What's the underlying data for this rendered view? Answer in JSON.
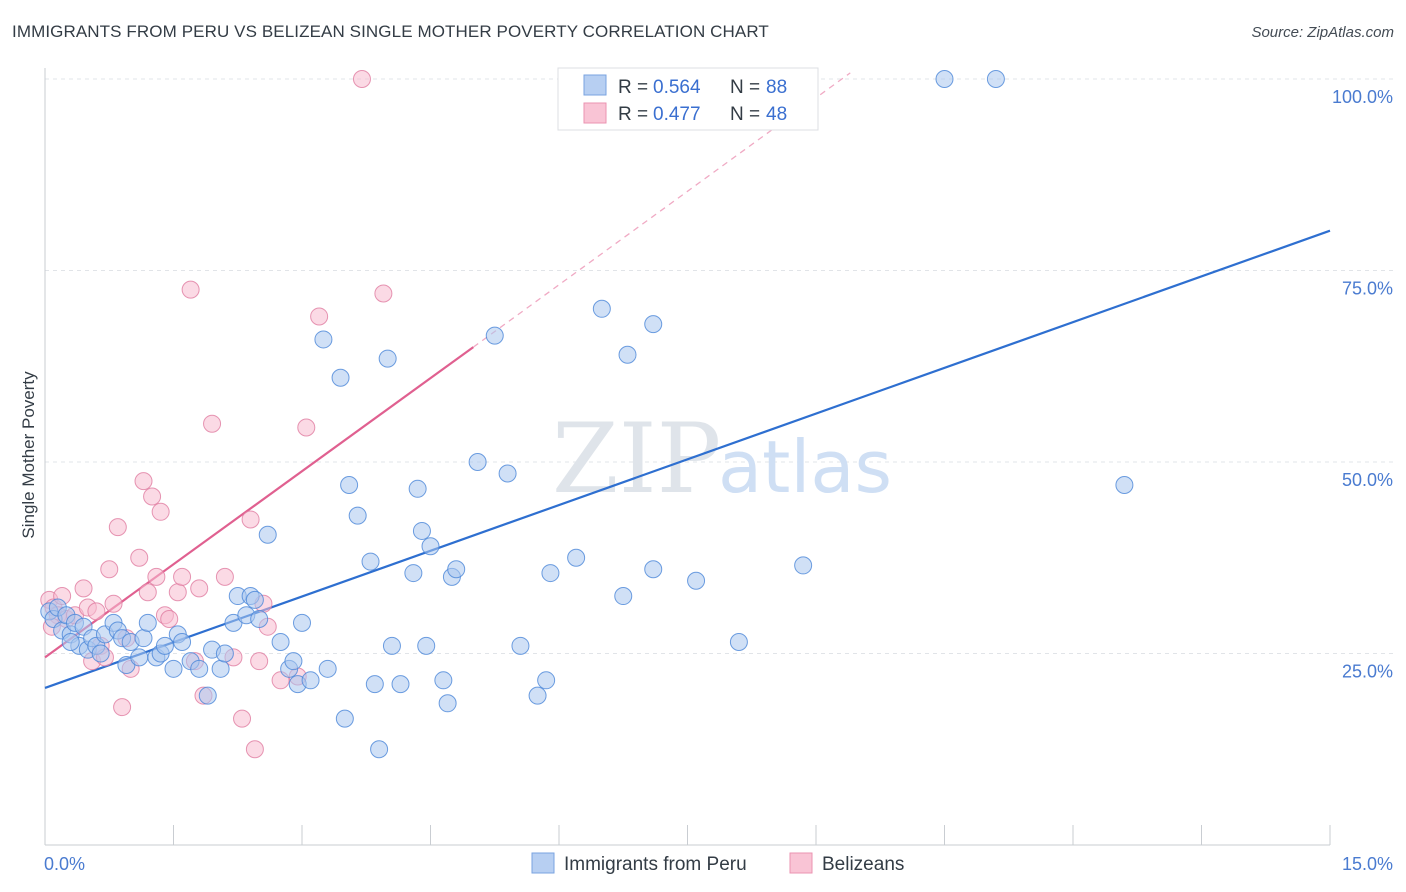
{
  "header": {
    "title": "IMMIGRANTS FROM PERU VS BELIZEAN SINGLE MOTHER POVERTY CORRELATION CHART",
    "source": "Source: ZipAtlas.com"
  },
  "watermark": {
    "zip": "ZIP",
    "atlas": "atlas"
  },
  "chart_data": {
    "type": "scatter",
    "title": "IMMIGRANTS FROM PERU VS BELIZEAN SINGLE MOTHER POVERTY CORRELATION CHART",
    "xlabel": "",
    "ylabel": "Single Mother Poverty",
    "xlim": [
      0,
      15
    ],
    "ylim": [
      0,
      102
    ],
    "x_tick_labels": [
      "0.0%",
      "15.0%"
    ],
    "y_ticks": [
      25,
      50,
      75,
      100
    ],
    "y_tick_labels": [
      "25.0%",
      "50.0%",
      "75.0%",
      "100.0%"
    ],
    "grid": true,
    "legend_position": "top-center",
    "legend": [
      {
        "name": "Immigrants from Peru",
        "r_label": "R =",
        "r": "0.564",
        "n_label": "N =",
        "n": "88"
      },
      {
        "name": "Belizeans",
        "r_label": "R =",
        "r": "0.477",
        "n_label": "N =",
        "n": "48"
      }
    ],
    "series": [
      {
        "name": "Immigrants from Peru",
        "color": "#4a86d8",
        "fill": "#a9c6ee",
        "trend": {
          "x": [
            0,
            15
          ],
          "y": [
            20.5,
            80.2
          ],
          "dashed": false,
          "color": "#2e6fd0"
        },
        "points": [
          [
            0.05,
            30.5
          ],
          [
            0.1,
            29.5
          ],
          [
            0.15,
            31
          ],
          [
            0.2,
            28
          ],
          [
            0.25,
            30
          ],
          [
            0.3,
            27.5
          ],
          [
            0.35,
            29
          ],
          [
            0.4,
            26
          ],
          [
            0.45,
            28.5
          ],
          [
            0.5,
            25.5
          ],
          [
            0.55,
            27
          ],
          [
            0.6,
            26
          ],
          [
            0.65,
            25
          ],
          [
            0.7,
            27.5
          ],
          [
            0.8,
            29
          ],
          [
            0.85,
            28
          ],
          [
            0.9,
            27
          ],
          [
            0.95,
            23.5
          ],
          [
            1.0,
            26.5
          ],
          [
            1.1,
            24.5
          ],
          [
            1.15,
            27
          ],
          [
            1.2,
            29
          ],
          [
            1.3,
            24.5
          ],
          [
            1.35,
            25
          ],
          [
            1.4,
            26
          ],
          [
            1.5,
            23
          ],
          [
            1.55,
            27.5
          ],
          [
            1.6,
            26.5
          ],
          [
            1.7,
            24
          ],
          [
            1.8,
            23
          ],
          [
            1.9,
            19.5
          ],
          [
            1.95,
            25.5
          ],
          [
            2.05,
            23
          ],
          [
            2.1,
            25
          ],
          [
            2.2,
            29
          ],
          [
            2.25,
            32.5
          ],
          [
            2.35,
            30
          ],
          [
            2.4,
            32.5
          ],
          [
            2.45,
            32
          ],
          [
            2.5,
            29.5
          ],
          [
            2.6,
            40.5
          ],
          [
            2.75,
            26.5
          ],
          [
            2.85,
            23
          ],
          [
            2.9,
            24
          ],
          [
            2.95,
            21
          ],
          [
            3.0,
            29
          ],
          [
            3.1,
            21.5
          ],
          [
            3.25,
            66
          ],
          [
            3.3,
            23
          ],
          [
            3.45,
            61
          ],
          [
            3.55,
            47
          ],
          [
            3.5,
            16.5
          ],
          [
            3.65,
            43
          ],
          [
            3.8,
            37
          ],
          [
            3.85,
            21
          ],
          [
            3.9,
            12.5
          ],
          [
            4.0,
            63.5
          ],
          [
            4.05,
            26
          ],
          [
            4.15,
            21
          ],
          [
            4.3,
            35.5
          ],
          [
            4.35,
            46.5
          ],
          [
            4.4,
            41
          ],
          [
            4.45,
            26
          ],
          [
            4.5,
            39
          ],
          [
            4.65,
            21.5
          ],
          [
            4.7,
            18.5
          ],
          [
            4.75,
            35
          ],
          [
            4.8,
            36
          ],
          [
            5.05,
            50
          ],
          [
            5.25,
            66.5
          ],
          [
            5.4,
            48.5
          ],
          [
            5.55,
            26
          ],
          [
            5.75,
            19.5
          ],
          [
            5.85,
            21.5
          ],
          [
            5.9,
            35.5
          ],
          [
            6.2,
            37.5
          ],
          [
            6.5,
            70
          ],
          [
            6.75,
            32.5
          ],
          [
            6.8,
            64
          ],
          [
            7.1,
            68
          ],
          [
            7.1,
            36
          ],
          [
            7.6,
            34.5
          ],
          [
            8.1,
            26.5
          ],
          [
            8.85,
            36.5
          ],
          [
            10.5,
            100
          ],
          [
            11.1,
            100
          ],
          [
            12.6,
            47
          ],
          [
            0.3,
            26.5
          ]
        ]
      },
      {
        "name": "Belizeans",
        "color": "#e07ca0",
        "fill": "#f7bcd0",
        "trend": {
          "x": [
            0,
            5
          ],
          "y": [
            24.5,
            65
          ],
          "dashed": false,
          "color": "#e06090"
        },
        "trend_extension": {
          "x": [
            5,
            9.4
          ],
          "y": [
            65,
            100.8
          ],
          "dashed": true,
          "color": "#f0aac4"
        },
        "points": [
          [
            0.05,
            32
          ],
          [
            0.1,
            31
          ],
          [
            0.15,
            30
          ],
          [
            0.2,
            32.5
          ],
          [
            0.25,
            29.5
          ],
          [
            0.35,
            30
          ],
          [
            0.45,
            33.5
          ],
          [
            0.5,
            31
          ],
          [
            0.55,
            24
          ],
          [
            0.6,
            30.5
          ],
          [
            0.65,
            26
          ],
          [
            0.7,
            24.5
          ],
          [
            0.75,
            36
          ],
          [
            0.8,
            31.5
          ],
          [
            0.85,
            41.5
          ],
          [
            0.9,
            18
          ],
          [
            0.95,
            27
          ],
          [
            1.0,
            23
          ],
          [
            1.1,
            37.5
          ],
          [
            1.15,
            47.5
          ],
          [
            1.2,
            33
          ],
          [
            1.25,
            45.5
          ],
          [
            1.3,
            35
          ],
          [
            1.35,
            43.5
          ],
          [
            1.4,
            30
          ],
          [
            1.45,
            29.5
          ],
          [
            1.55,
            33
          ],
          [
            1.6,
            35
          ],
          [
            1.7,
            72.5
          ],
          [
            1.75,
            24
          ],
          [
            1.8,
            33.5
          ],
          [
            1.85,
            19.5
          ],
          [
            1.95,
            55
          ],
          [
            2.1,
            35
          ],
          [
            2.2,
            24.5
          ],
          [
            2.3,
            16.5
          ],
          [
            2.4,
            42.5
          ],
          [
            2.45,
            12.5
          ],
          [
            2.5,
            24
          ],
          [
            2.55,
            31.5
          ],
          [
            2.6,
            28.5
          ],
          [
            2.75,
            21.5
          ],
          [
            2.95,
            22
          ],
          [
            3.05,
            54.5
          ],
          [
            3.2,
            69
          ],
          [
            3.7,
            100
          ],
          [
            3.95,
            72
          ],
          [
            0.08,
            28.5
          ]
        ]
      }
    ]
  },
  "bottom_legend": {
    "items": [
      "Immigrants from Peru",
      "Belizeans"
    ]
  }
}
